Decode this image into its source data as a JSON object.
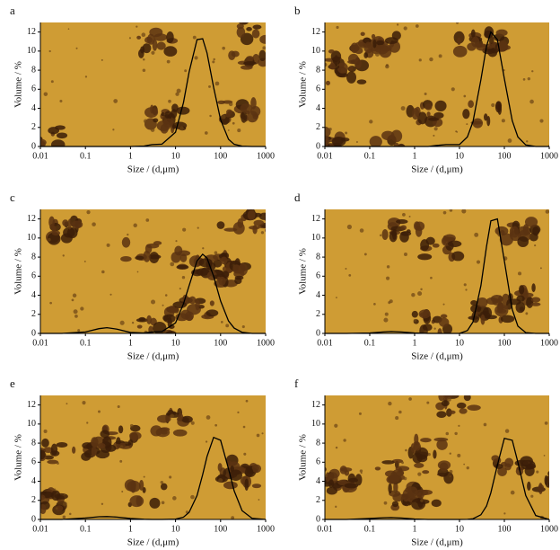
{
  "chart_data": [
    {
      "type": "line",
      "title": "a",
      "x_label": "Size / (d,μm)",
      "y_label": "Volume / %",
      "xscale": "log",
      "xlim": [
        0.01,
        1000
      ],
      "xticks": [
        0.01,
        0.1,
        1,
        10,
        100,
        1000
      ],
      "ylim": [
        0,
        13
      ],
      "yticks": [
        0,
        2,
        4,
        6,
        8,
        10,
        12
      ],
      "color": "#000000",
      "x": [
        0.01,
        0.03,
        0.1,
        0.2,
        0.3,
        0.5,
        1,
        2,
        3,
        5,
        10,
        15,
        20,
        30,
        40,
        50,
        70,
        100,
        150,
        200,
        300,
        500,
        1000
      ],
      "values": [
        0,
        0,
        0,
        0,
        0,
        0,
        0,
        0.05,
        0.2,
        0.25,
        1.5,
        4.6,
        7.8,
        11.2,
        11.3,
        9.8,
        6.2,
        2.8,
        0.75,
        0.23,
        0.03,
        0,
        0
      ]
    },
    {
      "type": "line",
      "title": "b",
      "x_label": "Size / (d,μm)",
      "y_label": "Volume / %",
      "xscale": "log",
      "xlim": [
        0.01,
        1000
      ],
      "xticks": [
        0.01,
        0.1,
        1,
        10,
        100,
        1000
      ],
      "ylim": [
        0,
        13
      ],
      "yticks": [
        0,
        2,
        4,
        6,
        8,
        10,
        12
      ],
      "color": "#000000",
      "x": [
        0.01,
        0.03,
        0.1,
        0.2,
        0.3,
        0.5,
        1,
        2,
        3,
        5,
        10,
        15,
        20,
        30,
        40,
        50,
        70,
        100,
        150,
        200,
        300,
        500,
        1000
      ],
      "values": [
        0,
        0,
        0,
        0,
        0,
        0,
        0,
        0,
        0.1,
        0.2,
        0.2,
        1.0,
        2.6,
        7.0,
        10.5,
        12.0,
        11.2,
        7.1,
        2.7,
        1.0,
        0.16,
        0,
        0
      ]
    },
    {
      "type": "line",
      "title": "c",
      "x_label": "Size / (d,μm)",
      "y_label": "Volume / %",
      "xscale": "log",
      "xlim": [
        0.01,
        1000
      ],
      "xticks": [
        0.01,
        0.1,
        1,
        10,
        100,
        1000
      ],
      "ylim": [
        0,
        13
      ],
      "yticks": [
        0,
        2,
        4,
        6,
        8,
        10,
        12
      ],
      "color": "#000000",
      "x": [
        0.01,
        0.03,
        0.1,
        0.2,
        0.3,
        0.5,
        1,
        2,
        3,
        5,
        10,
        15,
        20,
        30,
        40,
        50,
        70,
        100,
        150,
        200,
        300,
        500,
        1000
      ],
      "values": [
        0,
        0,
        0.15,
        0.5,
        0.6,
        0.45,
        0.1,
        0.05,
        0.15,
        0.2,
        1.1,
        3.1,
        5.0,
        7.6,
        8.3,
        7.9,
        6.0,
        3.4,
        1.3,
        0.56,
        0.12,
        0,
        0
      ]
    },
    {
      "type": "line",
      "title": "d",
      "x_label": "Size / (d,μm)",
      "y_label": "Volume / %",
      "xscale": "log",
      "xlim": [
        0.01,
        1000
      ],
      "xticks": [
        0.01,
        0.1,
        1,
        10,
        100,
        1000
      ],
      "ylim": [
        0,
        13
      ],
      "yticks": [
        0,
        2,
        4,
        6,
        8,
        10,
        12
      ],
      "color": "#000000",
      "x": [
        0.01,
        0.03,
        0.1,
        0.2,
        0.3,
        0.5,
        1,
        2,
        3,
        5,
        10,
        15,
        20,
        30,
        40,
        50,
        70,
        100,
        150,
        200,
        300,
        500,
        1000
      ],
      "values": [
        0,
        0,
        0.05,
        0.15,
        0.2,
        0.15,
        0.05,
        0,
        0,
        0,
        0,
        0.3,
        1.2,
        5.0,
        9.1,
        11.8,
        12.0,
        7.6,
        2.5,
        0.77,
        0.08,
        0,
        0
      ]
    },
    {
      "type": "line",
      "title": "e",
      "x_label": "Size / (d,μm)",
      "y_label": "Volume / %",
      "xscale": "log",
      "xlim": [
        0.01,
        1000
      ],
      "xticks": [
        0.01,
        0.1,
        1,
        10,
        100,
        1000
      ],
      "ylim": [
        0,
        13
      ],
      "yticks": [
        0,
        2,
        4,
        6,
        8,
        10,
        12
      ],
      "color": "#000000",
      "x": [
        0.01,
        0.03,
        0.1,
        0.2,
        0.3,
        0.5,
        1,
        2,
        3,
        5,
        10,
        15,
        20,
        30,
        40,
        50,
        70,
        100,
        150,
        200,
        300,
        500,
        1000
      ],
      "values": [
        0,
        0,
        0.15,
        0.28,
        0.3,
        0.25,
        0.1,
        0.02,
        0,
        0,
        0.03,
        0.24,
        0.74,
        2.5,
        4.7,
        6.6,
        8.6,
        8.3,
        5.3,
        3.0,
        0.92,
        0.12,
        0
      ]
    },
    {
      "type": "line",
      "title": "f",
      "x_label": "Size / (d,μm)",
      "y_label": "Volume / %",
      "xscale": "log",
      "xlim": [
        0.01,
        1000
      ],
      "xticks": [
        0.01,
        0.1,
        1,
        10,
        100,
        1000
      ],
      "ylim": [
        0,
        13
      ],
      "yticks": [
        0,
        2,
        4,
        6,
        8,
        10,
        12
      ],
      "color": "#000000",
      "x": [
        0.01,
        0.03,
        0.1,
        0.2,
        0.3,
        0.5,
        1,
        2,
        3,
        5,
        10,
        15,
        20,
        30,
        40,
        50,
        70,
        100,
        150,
        200,
        300,
        500,
        1000
      ],
      "values": [
        0,
        0,
        0.1,
        0.18,
        0.2,
        0.15,
        0.05,
        0,
        0,
        0,
        0,
        0.01,
        0.07,
        0.49,
        1.4,
        2.8,
        5.7,
        8.5,
        8.3,
        6.0,
        2.5,
        0.41,
        0
      ]
    }
  ]
}
